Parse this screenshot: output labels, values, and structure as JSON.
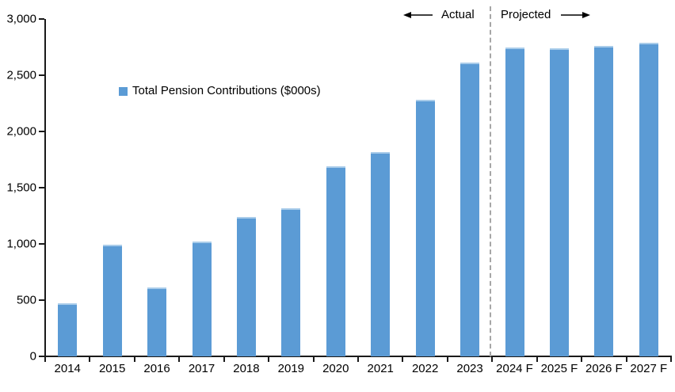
{
  "chart_data": {
    "type": "bar",
    "title": "",
    "legend_label": "Total Pension Contributions ($000s)",
    "categories": [
      "2014",
      "2015",
      "2016",
      "2017",
      "2018",
      "2019",
      "2020",
      "2021",
      "2022",
      "2023",
      "2024 F",
      "2025 F",
      "2026 F",
      "2027 F"
    ],
    "values": [
      470,
      990,
      610,
      1020,
      1240,
      1320,
      1690,
      1820,
      2280,
      2610,
      2750,
      2740,
      2760,
      2790
    ],
    "ylim": [
      0,
      3000
    ],
    "ytick_interval": 500,
    "ytick_labels": [
      "0",
      "500",
      "1,000",
      "1,500",
      "2,000",
      "2,500",
      "3,000"
    ],
    "grid": false,
    "legend_position": "inside-upper-left",
    "annotations": {
      "actual": "Actual",
      "projected": "Projected",
      "divider_after_category": "2023"
    },
    "colors": {
      "bar": "#5B9BD5",
      "bar_top_edge": "#A9CCEA",
      "divider": "#A6A6A6",
      "axis": "#1A1A1A",
      "text": "#000000"
    }
  }
}
